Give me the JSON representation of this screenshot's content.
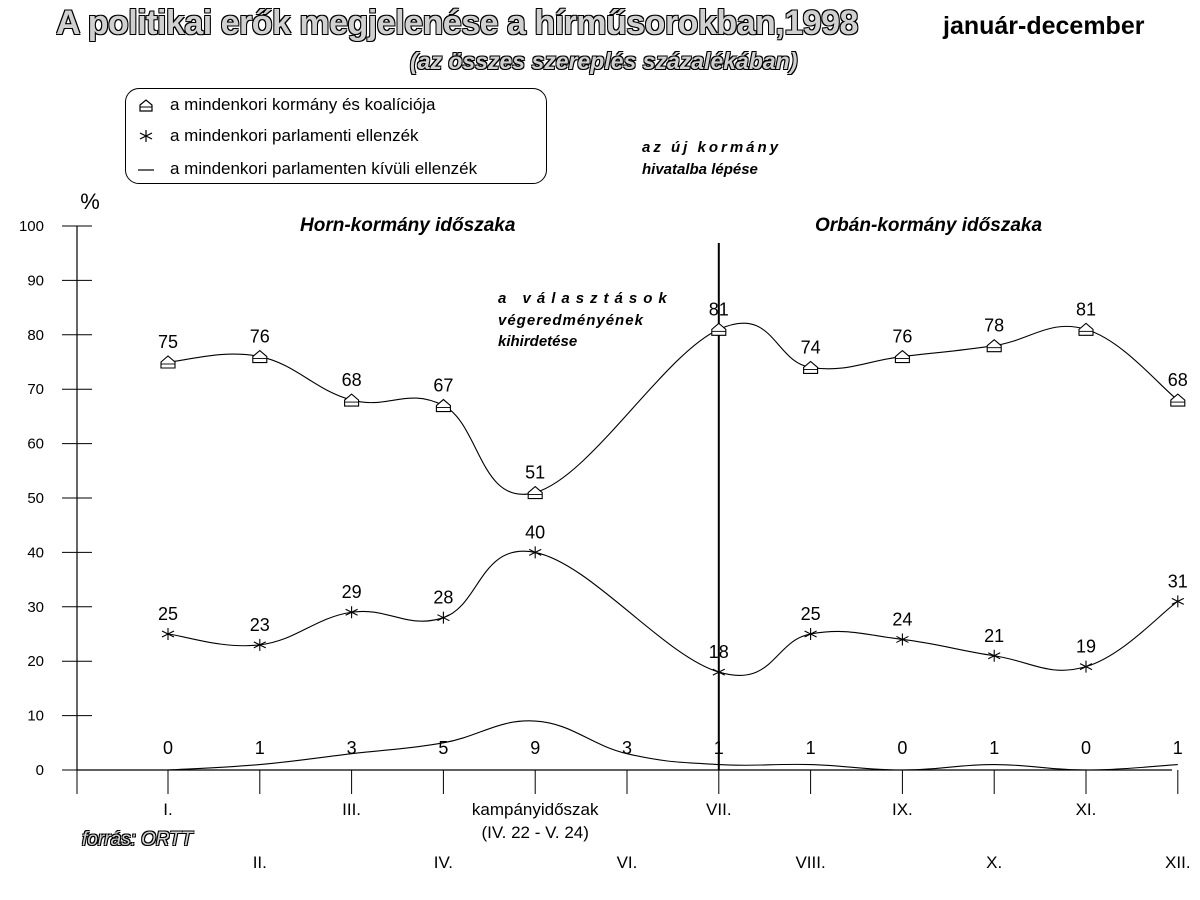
{
  "title": {
    "main": "A politikai erők megjelenése a hírműsorokban,1998",
    "tail": "január-december",
    "subtitle": "(az összes szereplés százalékában)"
  },
  "legend": {
    "items": [
      {
        "label": "a mindenkori kormány és koalíciója",
        "symbol": "house"
      },
      {
        "label": "a mindenkori parlamenti ellenzék",
        "symbol": "star"
      },
      {
        "label": "a mindenkori parlamenten kívüli ellenzék",
        "symbol": "line"
      }
    ]
  },
  "annotations": {
    "new_government_line1": "az új kormány",
    "new_government_line2": "hivatalba lépése",
    "election_line1": "a választások",
    "election_line2": "végeredményének",
    "election_line3": "kihirdetése",
    "horn_period": "Horn-kormány időszaka",
    "orban_period": "Orbán-kormány időszaka"
  },
  "source": "forrás: ORTT",
  "chart_data": {
    "type": "line",
    "ylabel": "%",
    "ylim": [
      0,
      100
    ],
    "yticks": [
      0,
      10,
      20,
      30,
      40,
      50,
      60,
      70,
      80,
      90,
      100
    ],
    "categories_upper": [
      "I.",
      "III.",
      "kampányidőszak",
      "VII.",
      "IX.",
      "XI."
    ],
    "categories_upper_sub": "(IV. 22 - V. 24)",
    "categories_lower": [
      "II.",
      "IV.",
      "VI.",
      "VIII.",
      "X.",
      "XII."
    ],
    "category_order": [
      "I.",
      "II.",
      "III.",
      "IV.",
      "kampányidőszak",
      "VI.",
      "VII.",
      "VIII.",
      "IX.",
      "X.",
      "XI.",
      "XII."
    ],
    "series": [
      {
        "name": "a mindenkori kormány és koalíciója",
        "marker": "house",
        "x_index": [
          0,
          1,
          2,
          3,
          4,
          6,
          7,
          8,
          9,
          10,
          11
        ],
        "values": [
          75,
          76,
          68,
          67,
          51,
          81,
          74,
          76,
          78,
          81,
          68
        ]
      },
      {
        "name": "a mindenkori parlamenti ellenzék",
        "marker": "star",
        "x_index": [
          0,
          1,
          2,
          3,
          4,
          6,
          7,
          8,
          9,
          10,
          11
        ],
        "values": [
          25,
          23,
          29,
          28,
          40,
          18,
          25,
          24,
          21,
          19,
          31
        ]
      },
      {
        "name": "a mindenkori parlamenten kívüli ellenzék",
        "marker": "none",
        "x_index": [
          0,
          1,
          2,
          3,
          4,
          5,
          6,
          7,
          8,
          9,
          10,
          11
        ],
        "values": [
          0,
          1,
          3,
          5,
          9,
          3,
          1,
          1,
          0,
          1,
          0,
          1
        ]
      }
    ],
    "divider_at_category": "VII.",
    "grid": false
  }
}
